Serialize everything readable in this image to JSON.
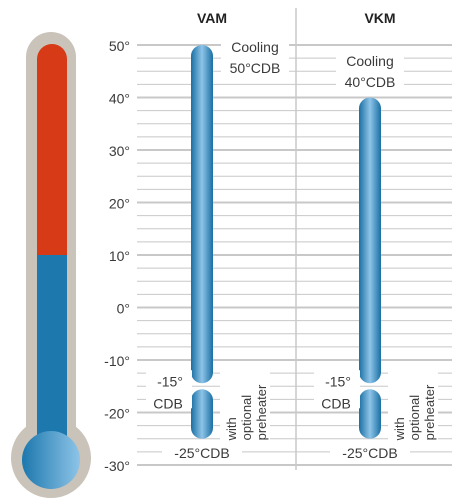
{
  "chart_data": {
    "type": "bar",
    "unit": "°",
    "y_ticks": [
      50,
      40,
      30,
      20,
      10,
      0,
      -10,
      -20,
      -30
    ],
    "ylim": [
      -30,
      50
    ],
    "grid": true,
    "columns": [
      {
        "title": "VAM",
        "range_min": -25,
        "range_max": 50,
        "split_at": -15,
        "top_label": [
          "Cooling",
          "50°CDB"
        ],
        "split_label": [
          "-15°",
          "CDB"
        ],
        "bottom_label": "-25°CDB",
        "note": [
          "with",
          "optional",
          "preheater"
        ]
      },
      {
        "title": "VKM",
        "range_min": -25,
        "range_max": 40,
        "split_at": -15,
        "top_label": [
          "Cooling",
          "40°CDB"
        ],
        "split_label": [
          "-15°",
          "CDB"
        ],
        "bottom_label": "-25°CDB",
        "note": [
          "with",
          "optional",
          "preheater"
        ]
      }
    ],
    "thermometer": {
      "level": 10
    }
  },
  "colors": {
    "bar_dark": "#1a6fa3",
    "bar_light": "#8ec4e8",
    "red": "#d63a16",
    "blue": "#1c78ad",
    "grid": "#c8c8c8",
    "shell": "#c9c3b9"
  }
}
